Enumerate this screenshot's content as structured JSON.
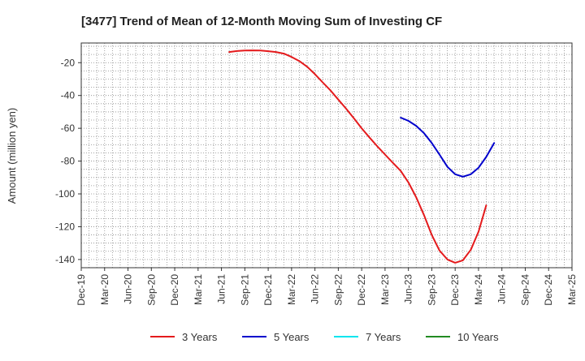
{
  "chart_data": {
    "type": "line",
    "title": "[3477]  Trend of Mean of 12-Month Moving Sum of Investing CF",
    "xlabel": "",
    "ylabel": "Amount (million yen)",
    "ylim": [
      -145,
      -8
    ],
    "yticks": [
      -20,
      -40,
      -60,
      -80,
      -100,
      -120,
      -140
    ],
    "grid": true,
    "legend_position": "bottom",
    "categories": [
      "Dec-19",
      "Mar-20",
      "Jun-20",
      "Sep-20",
      "Dec-20",
      "Mar-21",
      "Jun-21",
      "Sep-21",
      "Dec-21",
      "Mar-22",
      "Jun-22",
      "Sep-22",
      "Dec-22",
      "Mar-23",
      "Jun-23",
      "Sep-23",
      "Dec-23",
      "Mar-24",
      "Jun-24",
      "Sep-24",
      "Dec-24",
      "Mar-25"
    ],
    "series": [
      {
        "name": "3 Years",
        "color": "#e41a1c",
        "points": [
          {
            "x": 6.33,
            "y": -13.5
          },
          {
            "x": 6.67,
            "y": -12.9
          },
          {
            "x": 7.0,
            "y": -12.6
          },
          {
            "x": 7.33,
            "y": -12.5
          },
          {
            "x": 7.67,
            "y": -12.6
          },
          {
            "x": 8.0,
            "y": -13.0
          },
          {
            "x": 8.33,
            "y": -13.5
          },
          {
            "x": 8.67,
            "y": -14.5
          },
          {
            "x": 9.0,
            "y": -16.5
          },
          {
            "x": 9.33,
            "y": -19.0
          },
          {
            "x": 9.67,
            "y": -22.5
          },
          {
            "x": 10.0,
            "y": -27.0
          },
          {
            "x": 10.33,
            "y": -32.0
          },
          {
            "x": 10.67,
            "y": -37.0
          },
          {
            "x": 11.0,
            "y": -42.5
          },
          {
            "x": 11.33,
            "y": -48.0
          },
          {
            "x": 11.67,
            "y": -54.0
          },
          {
            "x": 12.0,
            "y": -60.0
          },
          {
            "x": 12.33,
            "y": -65.5
          },
          {
            "x": 12.67,
            "y": -71.0
          },
          {
            "x": 13.0,
            "y": -76.0
          },
          {
            "x": 13.33,
            "y": -81.0
          },
          {
            "x": 13.67,
            "y": -86.0
          },
          {
            "x": 14.0,
            "y": -93.0
          },
          {
            "x": 14.33,
            "y": -102.0
          },
          {
            "x": 14.67,
            "y": -113.0
          },
          {
            "x": 15.0,
            "y": -125.0
          },
          {
            "x": 15.33,
            "y": -134.5
          },
          {
            "x": 15.67,
            "y": -140.0
          },
          {
            "x": 16.0,
            "y": -142.0
          },
          {
            "x": 16.33,
            "y": -140.5
          },
          {
            "x": 16.67,
            "y": -134.0
          },
          {
            "x": 17.0,
            "y": -123.0
          },
          {
            "x": 17.33,
            "y": -107.0
          }
        ]
      },
      {
        "name": "5 Years",
        "color": "#0000cc",
        "points": [
          {
            "x": 13.67,
            "y": -53.5
          },
          {
            "x": 14.0,
            "y": -55.5
          },
          {
            "x": 14.33,
            "y": -58.5
          },
          {
            "x": 14.67,
            "y": -63.0
          },
          {
            "x": 15.0,
            "y": -69.0
          },
          {
            "x": 15.33,
            "y": -76.0
          },
          {
            "x": 15.67,
            "y": -83.5
          },
          {
            "x": 16.0,
            "y": -88.0
          },
          {
            "x": 16.33,
            "y": -89.5
          },
          {
            "x": 16.67,
            "y": -88.0
          },
          {
            "x": 17.0,
            "y": -84.0
          },
          {
            "x": 17.33,
            "y": -77.5
          },
          {
            "x": 17.67,
            "y": -69.0
          }
        ]
      },
      {
        "name": "7 Years",
        "color": "#00e5ee",
        "points": []
      },
      {
        "name": "10 Years",
        "color": "#228b22",
        "points": []
      }
    ]
  }
}
